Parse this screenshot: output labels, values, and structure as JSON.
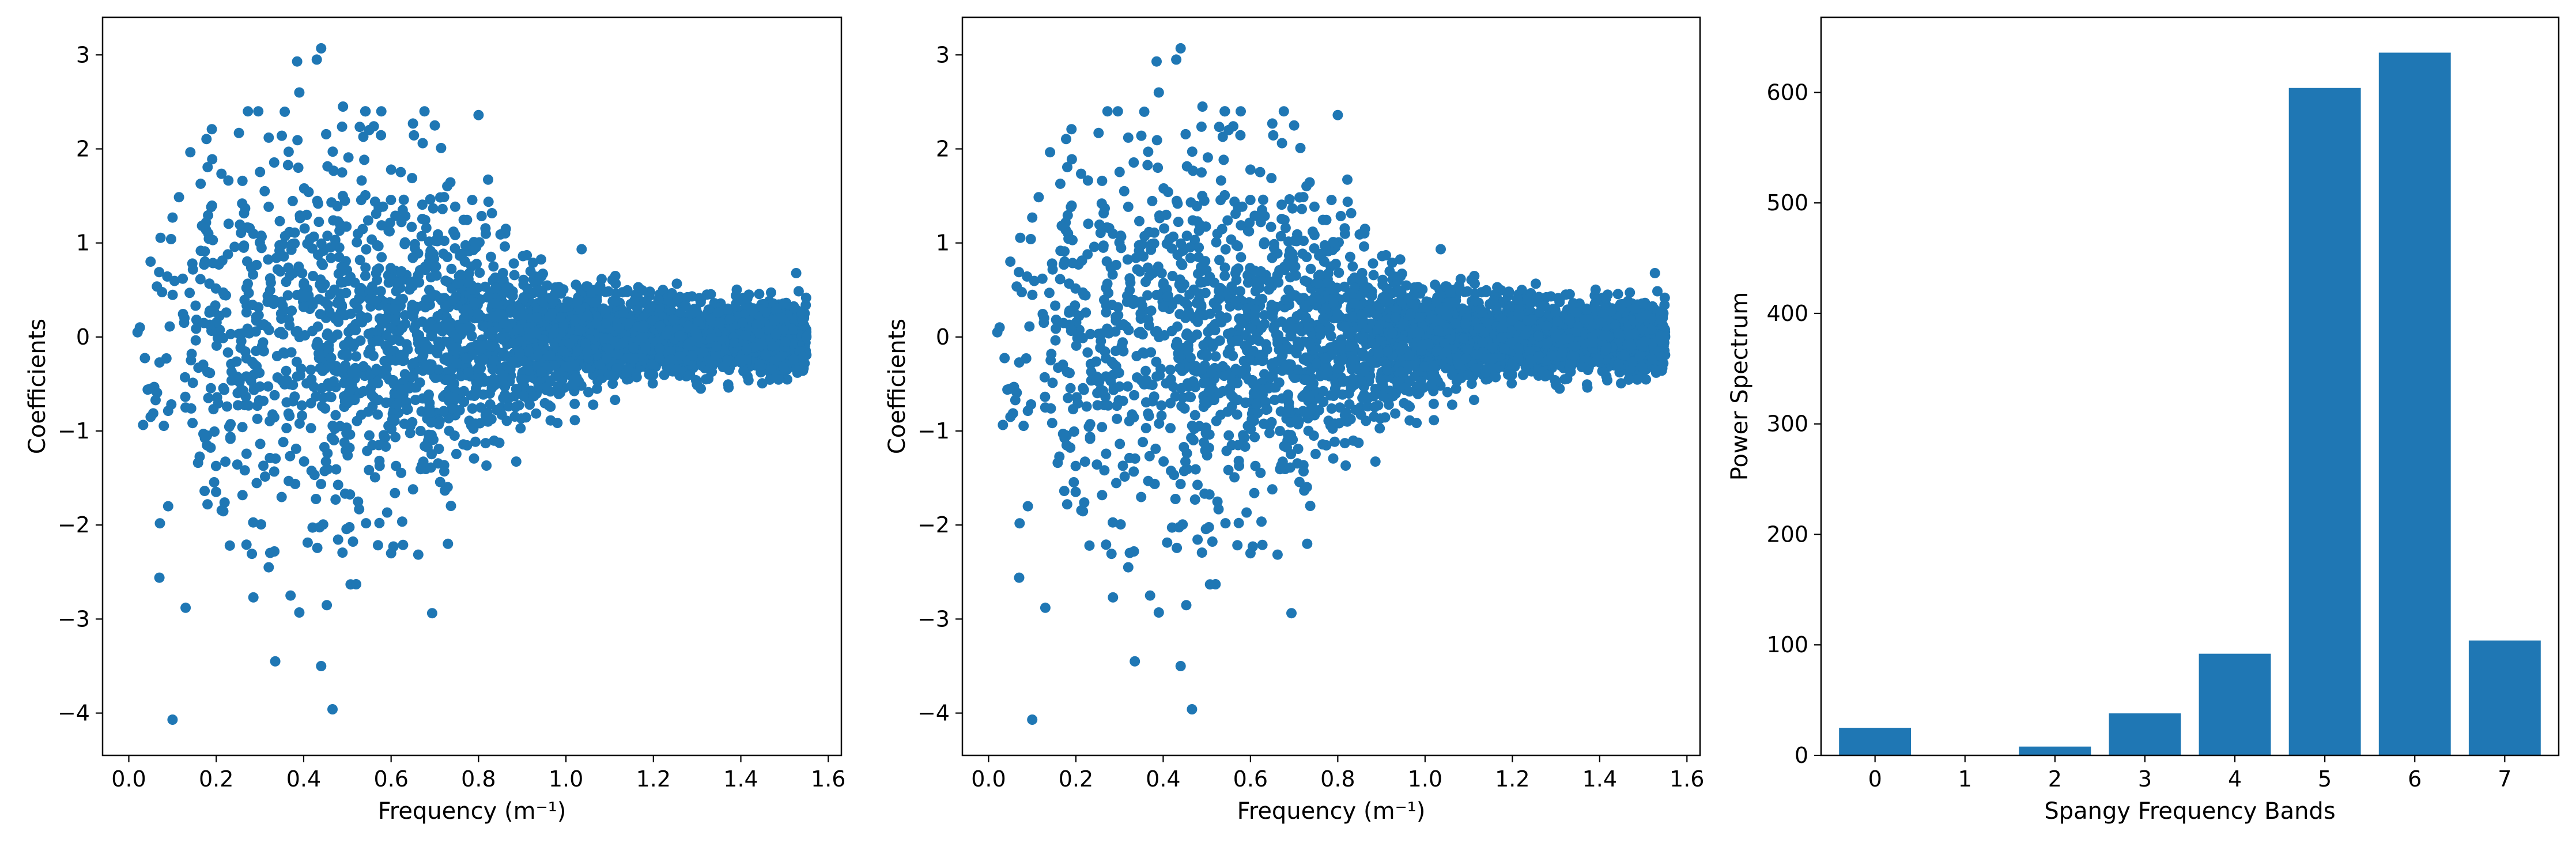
{
  "chart_data": [
    {
      "type": "scatter",
      "xlabel": "Frequency (m⁻¹)",
      "ylabel": "Coefficients",
      "xlim": [
        -0.06,
        1.63
      ],
      "ylim": [
        -4.45,
        3.4
      ],
      "xticks": [
        0.0,
        0.2,
        0.4,
        0.6,
        0.8,
        1.0,
        1.2,
        1.4,
        1.6
      ],
      "xtick_labels": [
        "0.0",
        "0.2",
        "0.4",
        "0.6",
        "0.8",
        "1.0",
        "1.2",
        "1.4",
        "1.6"
      ],
      "yticks": [
        -4,
        -3,
        -2,
        -1,
        0,
        1,
        2,
        3
      ],
      "ytick_labels": [
        "−4",
        "−3",
        "−2",
        "−1",
        "0",
        "1",
        "2",
        "3"
      ],
      "grid": false,
      "color": "#1f77b4",
      "outliers": [
        {
          "x": 0.1,
          "y": -4.07
        },
        {
          "x": 0.466,
          "y": -3.96
        },
        {
          "x": 0.335,
          "y": -3.45
        },
        {
          "x": 0.44,
          "y": -3.5
        },
        {
          "x": 0.39,
          "y": -2.93
        },
        {
          "x": 0.13,
          "y": -2.88
        },
        {
          "x": 0.07,
          "y": -2.56
        },
        {
          "x": 0.285,
          "y": -2.77
        },
        {
          "x": 0.37,
          "y": -2.75
        },
        {
          "x": 0.44,
          "y": 3.07
        },
        {
          "x": 0.43,
          "y": 2.95
        },
        {
          "x": 0.385,
          "y": 2.93
        },
        {
          "x": 0.39,
          "y": 2.6
        },
        {
          "x": 0.49,
          "y": 2.45
        },
        {
          "x": 0.19,
          "y": 2.21
        },
        {
          "x": 0.8,
          "y": 2.36
        },
        {
          "x": 0.65,
          "y": 2.27
        },
        {
          "x": 0.7,
          "y": 2.25
        },
        {
          "x": 0.55,
          "y": 2.2
        },
        {
          "x": 0.32,
          "y": 2.12
        },
        {
          "x": 0.35,
          "y": 2.14
        },
        {
          "x": 0.26,
          "y": 1.66
        },
        {
          "x": 0.6,
          "y": 1.78
        },
        {
          "x": 0.52,
          "y": -2.63
        },
        {
          "x": 0.6,
          "y": -2.3
        },
        {
          "x": 0.73,
          "y": -2.2
        },
        {
          "x": 0.32,
          "y": -2.45
        },
        {
          "x": 0.09,
          "y": -1.8
        },
        {
          "x": 0.18,
          "y": -1.78
        },
        {
          "x": 0.05,
          "y": -0.85
        },
        {
          "x": 0.02,
          "y": 0.05
        },
        {
          "x": 0.1,
          "y": 1.27
        },
        {
          "x": 1.6,
          "y": 0.0
        }
      ],
      "cloud": {
        "n": 3400,
        "x_min": 0.02,
        "x_max": 1.55,
        "seed": 7
      }
    },
    {
      "type": "scatter",
      "xlabel": "Frequency (m⁻¹)",
      "ylabel": "Coefficients",
      "xlim": [
        -0.06,
        1.63
      ],
      "ylim": [
        -4.45,
        3.4
      ],
      "xticks": [
        0.0,
        0.2,
        0.4,
        0.6,
        0.8,
        1.0,
        1.2,
        1.4,
        1.6
      ],
      "xtick_labels": [
        "0.0",
        "0.2",
        "0.4",
        "0.6",
        "0.8",
        "1.0",
        "1.2",
        "1.4",
        "1.6"
      ],
      "yticks": [
        -4,
        -3,
        -2,
        -1,
        0,
        1,
        2,
        3
      ],
      "ytick_labels": [
        "−4",
        "−3",
        "−2",
        "−1",
        "0",
        "1",
        "2",
        "3"
      ],
      "grid": false,
      "color": "#1f77b4",
      "outliers": [
        {
          "x": 0.1,
          "y": -4.07
        },
        {
          "x": 0.466,
          "y": -3.96
        },
        {
          "x": 0.335,
          "y": -3.45
        },
        {
          "x": 0.44,
          "y": -3.5
        },
        {
          "x": 0.39,
          "y": -2.93
        },
        {
          "x": 0.13,
          "y": -2.88
        },
        {
          "x": 0.07,
          "y": -2.56
        },
        {
          "x": 0.285,
          "y": -2.77
        },
        {
          "x": 0.37,
          "y": -2.75
        },
        {
          "x": 0.44,
          "y": 3.07
        },
        {
          "x": 0.43,
          "y": 2.95
        },
        {
          "x": 0.385,
          "y": 2.93
        },
        {
          "x": 0.39,
          "y": 2.6
        },
        {
          "x": 0.49,
          "y": 2.45
        },
        {
          "x": 0.19,
          "y": 2.21
        },
        {
          "x": 0.8,
          "y": 2.36
        },
        {
          "x": 0.65,
          "y": 2.27
        },
        {
          "x": 0.7,
          "y": 2.25
        },
        {
          "x": 0.55,
          "y": 2.2
        },
        {
          "x": 0.32,
          "y": 2.12
        },
        {
          "x": 0.35,
          "y": 2.14
        },
        {
          "x": 0.26,
          "y": 1.66
        },
        {
          "x": 0.6,
          "y": 1.78
        },
        {
          "x": 0.52,
          "y": -2.63
        },
        {
          "x": 0.6,
          "y": -2.3
        },
        {
          "x": 0.73,
          "y": -2.2
        },
        {
          "x": 0.32,
          "y": -2.45
        },
        {
          "x": 0.09,
          "y": -1.8
        },
        {
          "x": 0.18,
          "y": -1.78
        },
        {
          "x": 0.05,
          "y": -0.85
        },
        {
          "x": 0.02,
          "y": 0.05
        },
        {
          "x": 0.1,
          "y": 1.27
        },
        {
          "x": 1.6,
          "y": 0.0
        }
      ],
      "cloud": {
        "n": 3400,
        "x_min": 0.02,
        "x_max": 1.55,
        "seed": 7
      }
    },
    {
      "type": "bar",
      "xlabel": "Spangy Frequency Bands",
      "ylabel": "Power Spectrum",
      "categories": [
        "0",
        "1",
        "2",
        "3",
        "4",
        "5",
        "6",
        "7"
      ],
      "values": [
        25,
        0,
        8,
        38,
        92,
        604,
        636,
        104
      ],
      "xlim": [
        -0.6,
        7.6
      ],
      "ylim": [
        0,
        668
      ],
      "yticks": [
        0,
        100,
        200,
        300,
        400,
        500,
        600
      ],
      "ytick_labels": [
        "0",
        "100",
        "200",
        "300",
        "400",
        "500",
        "600"
      ],
      "grid": false,
      "color": "#1f77b4"
    }
  ]
}
